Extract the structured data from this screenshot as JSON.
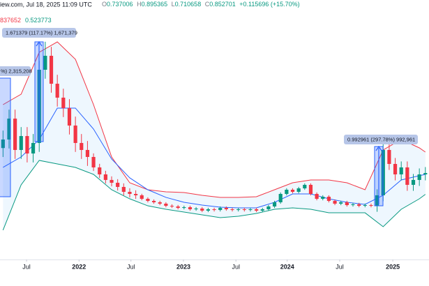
{
  "header": {
    "source": "iew.com, Jul 18, 2025 11:09 UTC",
    "ohlc": [
      "O",
      "0.737006",
      "H",
      "0.895365",
      "L",
      "0.710658",
      "C",
      "0.852701",
      "+0.115696 (+15.70%)"
    ],
    "bands_values": [
      "837652",
      "0.523773"
    ]
  },
  "annotations": [
    "%) 2,315,208",
    "1.671379 (117.17%) 1,671,379",
    "0.992961 (297.78%) 992,961"
  ],
  "chart_data": {
    "type": "candlestick",
    "up_color": "#089981",
    "down_color": "#f23645",
    "band_fill": "rgba(33,150,243,0.08)",
    "xlim": [
      -0.5,
      70.6
    ],
    "ylim": [
      -0.566,
      3.779
    ],
    "xticks": [
      {
        "value": 3.9,
        "label": "Jul"
      },
      {
        "value": 12.6,
        "label": "2022"
      },
      {
        "value": 21.2,
        "label": "Jul"
      },
      {
        "value": 29.9,
        "label": "2023"
      },
      {
        "value": 38.6,
        "label": "Jul"
      },
      {
        "value": 47.1,
        "label": "2024"
      },
      {
        "value": 55.8,
        "label": "Jul"
      },
      {
        "value": 64.6,
        "label": "2025"
      }
    ],
    "x": [
      0,
      1,
      2,
      3,
      4,
      5,
      6,
      7,
      8,
      9,
      10,
      11,
      12,
      13,
      14,
      15,
      16,
      17,
      18,
      19,
      20,
      21,
      22,
      23,
      24,
      25,
      26,
      27,
      28,
      29,
      30,
      31,
      32,
      33,
      34,
      35,
      36,
      37,
      38,
      39,
      40,
      41,
      42,
      43,
      44,
      45,
      46,
      47,
      48,
      49,
      50,
      51,
      52,
      53,
      54,
      55,
      56,
      57,
      58,
      59,
      60,
      61,
      62,
      63,
      64,
      65,
      66,
      67,
      68,
      69,
      70
    ],
    "open": [
      1.3,
      1.443,
      1.793,
      1.268,
      1.501,
      1.209,
      1.385,
      2.611,
      2.845,
      2.377,
      2.144,
      1.969,
      1.677,
      1.385,
      1.268,
      1.151,
      0.976,
      0.859,
      0.766,
      0.719,
      0.649,
      0.567,
      0.532,
      0.509,
      0.45,
      0.415,
      0.392,
      0.369,
      0.333,
      0.322,
      0.298,
      0.31,
      0.275,
      0.287,
      0.252,
      0.275,
      0.263,
      0.298,
      0.275,
      0.263,
      0.275,
      0.263,
      0.275,
      0.252,
      0.275,
      0.322,
      0.392,
      0.532,
      0.602,
      0.567,
      0.625,
      0.684,
      0.532,
      0.45,
      0.485,
      0.415,
      0.369,
      0.392,
      0.345,
      0.357,
      0.333,
      0.345,
      0.333,
      0.509,
      1.268,
      1.034,
      0.859,
      0.976,
      0.684,
      0.766,
      0.859
    ],
    "high": [
      1.593,
      1.943,
      1.943,
      1.651,
      1.651,
      1.535,
      2.761,
      3.08,
      2.995,
      2.527,
      2.294,
      2.119,
      1.827,
      1.535,
      1.418,
      1.211,
      1.036,
      0.919,
      0.826,
      0.779,
      0.709,
      0.627,
      0.592,
      0.534,
      0.475,
      0.44,
      0.417,
      0.394,
      0.358,
      0.347,
      0.335,
      0.335,
      0.312,
      0.312,
      0.3,
      0.3,
      0.323,
      0.323,
      0.3,
      0.3,
      0.3,
      0.3,
      0.3,
      0.3,
      0.347,
      0.417,
      0.557,
      0.627,
      0.627,
      0.65,
      0.709,
      0.709,
      0.557,
      0.51,
      0.51,
      0.44,
      0.417,
      0.417,
      0.382,
      0.382,
      0.37,
      0.37,
      0.609,
      1.368,
      1.368,
      1.134,
      1.076,
      1.076,
      0.866,
      0.959,
      0.982
    ],
    "low": [
      1.15,
      1.293,
      1.118,
      1.118,
      1.059,
      1.059,
      1.235,
      2.461,
      2.227,
      1.994,
      1.819,
      1.527,
      1.235,
      1.118,
      1.001,
      0.916,
      0.799,
      0.706,
      0.659,
      0.589,
      0.507,
      0.472,
      0.449,
      0.425,
      0.39,
      0.367,
      0.344,
      0.308,
      0.297,
      0.273,
      0.273,
      0.25,
      0.25,
      0.227,
      0.227,
      0.238,
      0.238,
      0.25,
      0.238,
      0.238,
      0.238,
      0.238,
      0.227,
      0.227,
      0.25,
      0.297,
      0.367,
      0.507,
      0.542,
      0.542,
      0.6,
      0.507,
      0.425,
      0.425,
      0.39,
      0.344,
      0.344,
      0.32,
      0.32,
      0.308,
      0.308,
      0.308,
      0.233,
      0.409,
      0.934,
      0.759,
      0.759,
      0.584,
      0.584,
      0.666,
      0.759
    ],
    "close": [
      1.443,
      1.793,
      1.268,
      1.501,
      1.209,
      1.385,
      2.611,
      2.845,
      2.377,
      2.144,
      1.969,
      1.677,
      1.385,
      1.268,
      1.151,
      0.976,
      0.859,
      0.766,
      0.719,
      0.649,
      0.567,
      0.532,
      0.509,
      0.45,
      0.415,
      0.392,
      0.369,
      0.333,
      0.322,
      0.298,
      0.31,
      0.275,
      0.287,
      0.252,
      0.275,
      0.263,
      0.298,
      0.275,
      0.263,
      0.275,
      0.263,
      0.275,
      0.252,
      0.275,
      0.322,
      0.392,
      0.532,
      0.602,
      0.567,
      0.625,
      0.684,
      0.532,
      0.45,
      0.485,
      0.415,
      0.369,
      0.392,
      0.345,
      0.357,
      0.333,
      0.345,
      0.333,
      0.509,
      1.268,
      1.034,
      0.859,
      0.976,
      0.684,
      0.766,
      0.859,
      0.882
    ],
    "bands": [
      {
        "color": "#f23645",
        "x": [
          0,
          3,
          6,
          9,
          12,
          15,
          18,
          21,
          24,
          27,
          30,
          33,
          36,
          39,
          42,
          45,
          48,
          51,
          54,
          57,
          60,
          63,
          66,
          69,
          70
        ],
        "values": [
          2.027,
          2.202,
          2.903,
          3.078,
          2.786,
          2.027,
          1.151,
          0.719,
          0.602,
          0.567,
          0.555,
          0.509,
          0.474,
          0.474,
          0.485,
          0.602,
          0.719,
          0.766,
          0.766,
          0.719,
          0.602,
          1.268,
          1.443,
          1.303,
          1.233
        ]
      },
      {
        "color": "#2962ff",
        "x": [
          0,
          3,
          6,
          9,
          12,
          15,
          18,
          21,
          24,
          27,
          30,
          33,
          36,
          39,
          42,
          45,
          48,
          51,
          54,
          57,
          60,
          63,
          66,
          69,
          70
        ],
        "values": [
          0.976,
          1.151,
          1.443,
          1.969,
          1.969,
          1.618,
          1.116,
          0.801,
          0.602,
          0.474,
          0.392,
          0.345,
          0.31,
          0.298,
          0.298,
          0.392,
          0.532,
          0.532,
          0.45,
          0.392,
          0.357,
          0.509,
          0.766,
          0.837,
          0.859
        ]
      },
      {
        "color": "#089981",
        "x": [
          0,
          3,
          6,
          9,
          12,
          15,
          18,
          21,
          24,
          27,
          30,
          33,
          36,
          39,
          42,
          45,
          48,
          51,
          54,
          57,
          60,
          63,
          66,
          69,
          70
        ],
        "values": [
          -0.075,
          0.684,
          1.093,
          1.034,
          0.976,
          0.859,
          0.602,
          0.45,
          0.333,
          0.275,
          0.228,
          0.182,
          0.135,
          0.158,
          0.205,
          0.275,
          0.298,
          0.275,
          0.216,
          0.216,
          0.216,
          -0.017,
          0.275,
          0.45,
          0.525
        ]
      }
    ]
  }
}
